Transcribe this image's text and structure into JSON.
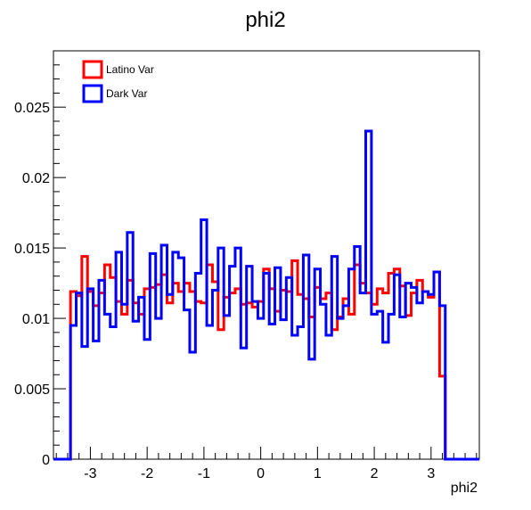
{
  "chart_data": {
    "type": "histogram",
    "title": "phi2",
    "xlabel": "phi2",
    "ylabel": "",
    "xlim": [
      -3.65,
      3.85
    ],
    "ylim": [
      0,
      0.029
    ],
    "x_ticks": [
      -3,
      -2,
      -1,
      0,
      1,
      2,
      3
    ],
    "x_tick_labels": [
      "-3",
      "-2",
      "-1",
      "0",
      "1",
      "2",
      "3"
    ],
    "y_ticks": [
      0,
      0.005,
      0.01,
      0.015,
      0.02,
      0.025
    ],
    "y_tick_labels": [
      "0",
      "0.005",
      "0.01",
      "0.015",
      "0.02",
      "0.025"
    ],
    "grid": false,
    "legend_position": "top-left",
    "bins": {
      "start": -3.65,
      "width": 0.1,
      "count": 75
    },
    "series": [
      {
        "name": "Latino Var",
        "color": "#ff0000",
        "values": [
          0,
          0,
          0,
          0.0119,
          0.0116,
          0.0144,
          0.0119,
          0.0109,
          0.0118,
          0.0138,
          0.0129,
          0.0112,
          0.0103,
          0.0127,
          0.0111,
          0.0103,
          0.0121,
          0.0122,
          0.0124,
          0.0131,
          0.0111,
          0.0125,
          0.0119,
          0.0125,
          0.0119,
          0.0112,
          0.0111,
          0.0138,
          0.0126,
          0.0092,
          0.0115,
          0.0118,
          0.0121,
          0.011,
          0.0111,
          0.0108,
          0.0112,
          0.0135,
          0.0121,
          0.0105,
          0.012,
          0.0119,
          0.0141,
          0.0117,
          0.0114,
          0.0101,
          0.0122,
          0.0114,
          0.0118,
          0.0092,
          0.0101,
          0.0114,
          0.0103,
          0.0138,
          0.0125,
          0.0118,
          0.011,
          0.0121,
          0.0118,
          0.0132,
          0.0135,
          0.0123,
          0.0102,
          0.0118,
          0.0127,
          0.0119,
          0.0115,
          0.0133,
          0.0059,
          0,
          0,
          0,
          0,
          0,
          0
        ]
      },
      {
        "name": "Dark Var",
        "color": "#0000ff",
        "values": [
          0,
          0,
          0,
          0.0095,
          0.0118,
          0.008,
          0.0121,
          0.0084,
          0.0127,
          0.0103,
          0.0094,
          0.0147,
          0.011,
          0.0161,
          0.0098,
          0.0115,
          0.0085,
          0.0146,
          0.01,
          0.0152,
          0.0117,
          0.0147,
          0.0143,
          0.0106,
          0.0076,
          0.0132,
          0.017,
          0.0095,
          0.012,
          0.015,
          0.0102,
          0.0137,
          0.015,
          0.0079,
          0.0137,
          0.0112,
          0.01,
          0.0132,
          0.0096,
          0.0136,
          0.0099,
          0.0129,
          0.0088,
          0.0094,
          0.0145,
          0.0071,
          0.0135,
          0.011,
          0.0088,
          0.0144,
          0.01,
          0.0109,
          0.0135,
          0.0151,
          0.0118,
          0.0233,
          0.0103,
          0.0105,
          0.0083,
          0.0103,
          0.0131,
          0.0101,
          0.0125,
          0.0122,
          0.0111,
          0.0119,
          0.0117,
          0.0133,
          0.0109,
          0,
          0,
          0,
          0,
          0,
          0
        ]
      }
    ]
  }
}
